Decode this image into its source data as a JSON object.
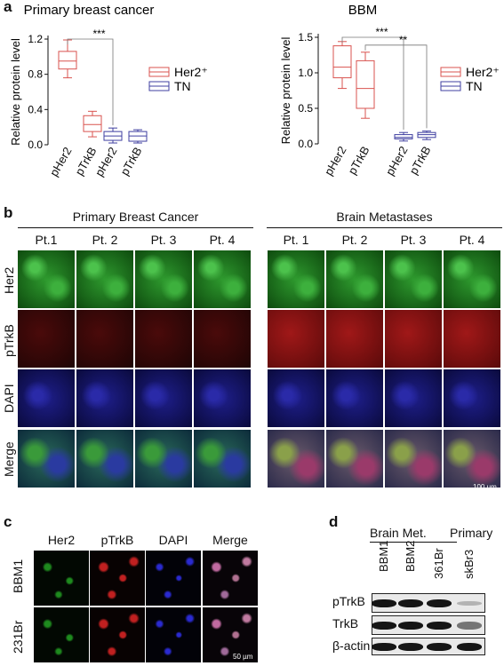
{
  "panel_a": {
    "letter": "a",
    "chart_data": [
      {
        "type": "box",
        "title": "Primary breast cancer",
        "xlabel": "",
        "ylabel": "Relative protein level",
        "ylim": [
          0,
          1.2
        ],
        "yticks": [
          "0.0",
          "0.4",
          "0.8",
          "1.2"
        ],
        "categories": [
          "pHer2",
          "pTrkB",
          "pHer2",
          "pTrkB"
        ],
        "series": [
          {
            "name": "Her2⁺",
            "color": "#d9534f",
            "boxes": [
              {
                "category": "pHer2",
                "min": 0.76,
                "q1": 0.86,
                "median": 0.95,
                "q3": 1.06,
                "max": 1.19
              },
              {
                "category": "pTrkB",
                "min": 0.09,
                "q1": 0.15,
                "median": 0.23,
                "q3": 0.33,
                "max": 0.38
              }
            ]
          },
          {
            "name": "TN",
            "color": "#3f3fa0",
            "boxes": [
              {
                "category": "pHer2",
                "min": 0.02,
                "q1": 0.05,
                "median": 0.1,
                "q3": 0.15,
                "max": 0.19
              },
              {
                "category": "pTrkB",
                "min": 0.02,
                "q1": 0.04,
                "median": 0.1,
                "q3": 0.15,
                "max": 0.17
              }
            ]
          }
        ],
        "annotations": [
          "***"
        ],
        "legend_position": "right"
      },
      {
        "type": "box",
        "title": "BBM",
        "xlabel": "",
        "ylabel": "Relative protein level",
        "ylim": [
          0,
          1.5
        ],
        "yticks": [
          "0.0",
          "0.5",
          "1.0",
          "1.5"
        ],
        "categories": [
          "pHer2",
          "pTrkB",
          "pHer2",
          "pTrkB"
        ],
        "series": [
          {
            "name": "Her2⁺",
            "color": "#d9534f",
            "boxes": [
              {
                "category": "pHer2",
                "min": 0.78,
                "q1": 0.93,
                "median": 1.08,
                "q3": 1.38,
                "max": 1.44
              },
              {
                "category": "pTrkB",
                "min": 0.36,
                "q1": 0.5,
                "median": 0.78,
                "q3": 1.17,
                "max": 1.29
              }
            ]
          },
          {
            "name": "TN",
            "color": "#3f3fa0",
            "boxes": [
              {
                "category": "pHer2",
                "min": 0.04,
                "q1": 0.07,
                "median": 0.09,
                "q3": 0.13,
                "max": 0.16
              },
              {
                "category": "pTrkB",
                "min": 0.06,
                "q1": 0.09,
                "median": 0.13,
                "q3": 0.16,
                "max": 0.18
              }
            ]
          }
        ],
        "annotations": [
          "***",
          "**"
        ],
        "legend_position": "right"
      }
    ]
  },
  "panel_b": {
    "letter": "b",
    "group_primary": "Primary Breast Cancer",
    "group_metastases": "Brain Metastases",
    "primary_cols": [
      "Pt.1",
      "Pt. 2",
      "Pt. 3",
      "Pt. 4"
    ],
    "metastases_cols": [
      "Pt. 1",
      "Pt. 2",
      "Pt. 3",
      "Pt. 4"
    ],
    "rows": [
      "Her2",
      "pTrkB",
      "DAPI",
      "Merge"
    ],
    "scale_bar": "100 µm"
  },
  "panel_c": {
    "letter": "c",
    "cols": [
      "Her2",
      "pTrkB",
      "DAPI",
      "Merge"
    ],
    "rows": [
      "BBM1",
      "231Br"
    ],
    "scale_bar": "50 µm"
  },
  "panel_d": {
    "letter": "d",
    "group_brain": "Brain Met.",
    "group_primary": "Primary",
    "lanes": [
      "BBM1",
      "BBM2",
      "361Br",
      "skBr3"
    ],
    "rows": [
      "pTrkB",
      "TrkB",
      "β-actin"
    ]
  },
  "colors": {
    "her2": "#d9534f",
    "tn": "#3f3fa0",
    "green_stain": "#2e9a2e",
    "red_stain": "#8a1414",
    "blue_stain": "#22229a"
  }
}
